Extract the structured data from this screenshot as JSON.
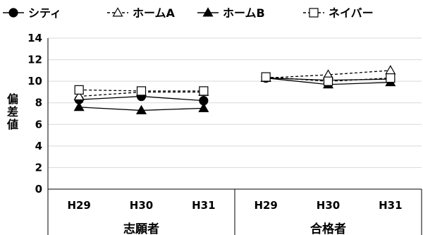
{
  "chart_data": {
    "type": "line",
    "groups": [
      {
        "label": "志願者",
        "categories": [
          "H29",
          "H30",
          "H31"
        ]
      },
      {
        "label": "合格者",
        "categories": [
          "H29",
          "H30",
          "H31"
        ]
      }
    ],
    "ylabel": "偏差値",
    "ylim": [
      0,
      14
    ],
    "yticks": [
      0,
      2,
      4,
      6,
      8,
      10,
      12,
      14
    ],
    "grid": true,
    "legend_position": "top",
    "series": [
      {
        "name": "シティ",
        "marker": "circle-filled",
        "line": "solid",
        "values": [
          [
            8.3,
            8.6,
            8.2
          ],
          [
            10.3,
            10.1,
            10.2
          ]
        ]
      },
      {
        "name": "ホームA",
        "marker": "triangle-open",
        "line": "dashed",
        "values": [
          [
            8.6,
            9.0,
            9.0
          ],
          [
            10.3,
            10.6,
            11.0
          ]
        ]
      },
      {
        "name": "ホームB",
        "marker": "triangle-filled",
        "line": "solid",
        "values": [
          [
            7.6,
            7.3,
            7.5
          ],
          [
            10.3,
            9.7,
            9.9
          ]
        ]
      },
      {
        "name": "ネイバー",
        "marker": "square-open",
        "line": "dashed",
        "values": [
          [
            9.2,
            9.1,
            9.1
          ],
          [
            10.4,
            10.0,
            10.3
          ]
        ]
      }
    ]
  }
}
